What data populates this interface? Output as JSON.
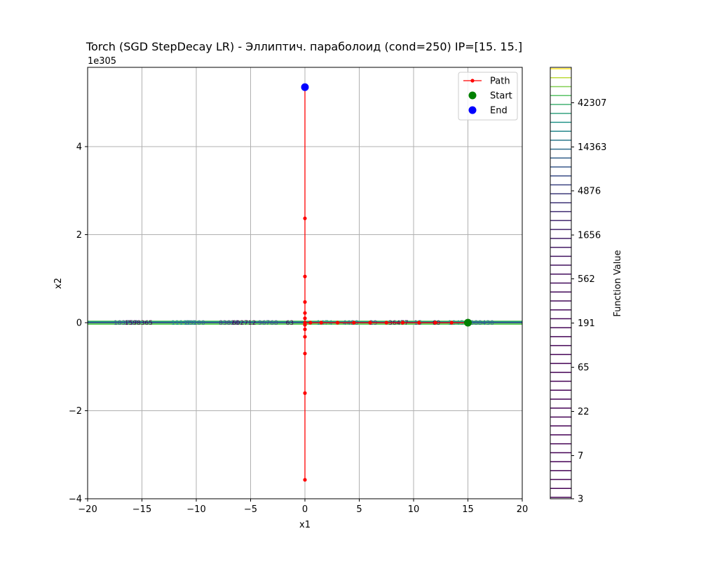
{
  "chart_data": {
    "type": "line",
    "title": "Torch (SGD StepDecay LR) - Эллиптич. параболоид (cond=250) IP=[15. 15.]",
    "xlabel": "x1",
    "ylabel": "x2",
    "y_offset_label": "1e305",
    "xlim": [
      -20,
      20
    ],
    "ylim": [
      -4,
      5.8
    ],
    "x_ticks": [
      -20,
      -15,
      -10,
      -5,
      0,
      5,
      10,
      15,
      20
    ],
    "x_tick_labels": [
      "−20",
      "−15",
      "−10",
      "−5",
      "0",
      "5",
      "10",
      "15",
      "20"
    ],
    "y_ticks": [
      -4,
      -2,
      0,
      2,
      4
    ],
    "y_tick_labels": [
      "−4",
      "−2",
      "0",
      "2",
      "4"
    ],
    "grid": true,
    "legend_position": "top-right",
    "legend": [
      {
        "label": "Path",
        "color": "#ff0000",
        "marker": "line-dot"
      },
      {
        "label": "Start",
        "color": "#008000",
        "marker": "circle"
      },
      {
        "label": "End",
        "color": "#0000ff",
        "marker": "circle"
      }
    ],
    "series": [
      {
        "name": "Path",
        "color": "#ff0000",
        "points": [
          [
            15,
            0
          ],
          [
            13.5,
            0
          ],
          [
            12,
            0
          ],
          [
            10.5,
            0
          ],
          [
            9,
            0
          ],
          [
            7.5,
            0
          ],
          [
            6,
            0
          ],
          [
            4.5,
            0
          ],
          [
            3,
            0
          ],
          [
            1.5,
            0
          ],
          [
            0.5,
            0
          ],
          [
            0,
            0
          ],
          [
            0,
            -0.05
          ],
          [
            0,
            0.1
          ],
          [
            0,
            -0.15
          ],
          [
            0,
            0.22
          ],
          [
            0,
            -0.32
          ],
          [
            0,
            0.47
          ],
          [
            0,
            -0.7
          ],
          [
            0,
            1.05
          ],
          [
            0,
            -1.6
          ],
          [
            0,
            2.37
          ],
          [
            0,
            -3.57
          ],
          [
            0,
            5.35
          ]
        ]
      }
    ],
    "start_point": [
      15,
      0
    ],
    "end_point": [
      0,
      5.35
    ],
    "colorbar": {
      "label": "Function Value",
      "tick_labels": [
        "3",
        "7",
        "22",
        "65",
        "191",
        "562",
        "1656",
        "4876",
        "14363",
        "42307"
      ],
      "num_levels": 49,
      "colors": [
        "#440154",
        "#3b528b",
        "#21918c",
        "#5ec962",
        "#fde725"
      ]
    },
    "contour_labels": [
      "183757",
      "1598365",
      "111120",
      "89100",
      "83828",
      "602712",
      "96768",
      "63",
      "1474",
      "4480",
      "29",
      "36477",
      "15",
      "60",
      "1945",
      "388430"
    ]
  }
}
